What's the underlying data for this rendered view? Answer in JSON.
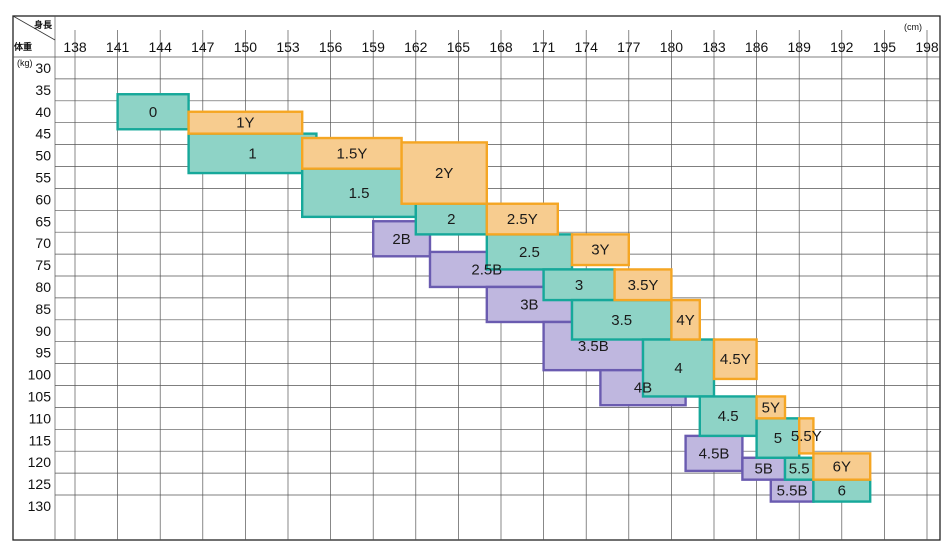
{
  "chart_data": {
    "type": "size-chart",
    "header": {
      "height_label": "身長",
      "weight_label": "体重",
      "height_unit": "(cm)",
      "weight_unit": "(kg)"
    },
    "x_ticks": [
      138,
      141,
      144,
      147,
      150,
      153,
      156,
      159,
      162,
      165,
      168,
      171,
      174,
      177,
      180,
      183,
      186,
      189,
      192,
      195,
      198
    ],
    "y_ticks": [
      30,
      35,
      40,
      45,
      50,
      55,
      60,
      65,
      70,
      75,
      80,
      85,
      90,
      95,
      100,
      105,
      110,
      115,
      120,
      125,
      130
    ],
    "series_colors": {
      "Y": "#f5a623",
      "R": "#16a89a",
      "B": "#6a5bb0"
    },
    "fill_colors": {
      "Y": "#f7cc8f",
      "R": "#8ed3c6",
      "B": "#bfb7df"
    },
    "sizes": [
      {
        "label": "0",
        "series": "R",
        "height": [
          141,
          146
        ],
        "weight": [
          36,
          44
        ]
      },
      {
        "label": "1Y",
        "series": "Y",
        "height": [
          146,
          154
        ],
        "weight": [
          40,
          45
        ]
      },
      {
        "label": "1",
        "series": "R",
        "height": [
          146,
          155
        ],
        "weight": [
          45,
          54
        ]
      },
      {
        "label": "1.5Y",
        "series": "Y",
        "height": [
          154,
          161
        ],
        "weight": [
          46,
          53
        ]
      },
      {
        "label": "2Y",
        "series": "Y",
        "height": [
          161,
          167
        ],
        "weight": [
          47,
          61
        ]
      },
      {
        "label": "1.5",
        "series": "R",
        "height": [
          154,
          162
        ],
        "weight": [
          53,
          64
        ]
      },
      {
        "label": "2",
        "series": "R",
        "height": [
          162,
          167
        ],
        "weight": [
          61,
          68
        ]
      },
      {
        "label": "2.5Y",
        "series": "Y",
        "height": [
          167,
          172
        ],
        "weight": [
          61,
          68
        ]
      },
      {
        "label": "2B",
        "series": "B",
        "height": [
          159,
          163
        ],
        "weight": [
          65,
          73
        ]
      },
      {
        "label": "2.5",
        "series": "R",
        "height": [
          167,
          173
        ],
        "weight": [
          68,
          76
        ]
      },
      {
        "label": "3Y",
        "series": "Y",
        "height": [
          173,
          177
        ],
        "weight": [
          68,
          75
        ]
      },
      {
        "label": "2.5B",
        "series": "B",
        "height": [
          163,
          171
        ],
        "weight": [
          72,
          80
        ]
      },
      {
        "label": "3",
        "series": "R",
        "height": [
          171,
          176
        ],
        "weight": [
          76,
          83
        ]
      },
      {
        "label": "3.5Y",
        "series": "Y",
        "height": [
          176,
          180
        ],
        "weight": [
          76,
          83
        ]
      },
      {
        "label": "3B",
        "series": "B",
        "height": [
          167,
          173
        ],
        "weight": [
          80,
          88
        ]
      },
      {
        "label": "3.5",
        "series": "R",
        "height": [
          173,
          180
        ],
        "weight": [
          83,
          92
        ]
      },
      {
        "label": "4Y",
        "series": "Y",
        "height": [
          180,
          182
        ],
        "weight": [
          83,
          92
        ]
      },
      {
        "label": "3.5B",
        "series": "B",
        "height": [
          171,
          178
        ],
        "weight": [
          88,
          99
        ]
      },
      {
        "label": "4",
        "series": "R",
        "height": [
          178,
          183
        ],
        "weight": [
          92,
          105
        ]
      },
      {
        "label": "4.5Y",
        "series": "Y",
        "height": [
          183,
          186
        ],
        "weight": [
          92,
          101
        ]
      },
      {
        "label": "4B",
        "series": "B",
        "height": [
          175,
          181
        ],
        "weight": [
          99,
          107
        ]
      },
      {
        "label": "4.5",
        "series": "R",
        "height": [
          182,
          186
        ],
        "weight": [
          105,
          114
        ]
      },
      {
        "label": "5Y",
        "series": "Y",
        "height": [
          186,
          188
        ],
        "weight": [
          105,
          110
        ]
      },
      {
        "label": "5",
        "series": "R",
        "height": [
          186,
          189
        ],
        "weight": [
          110,
          119
        ]
      },
      {
        "label": "5.5Y",
        "series": "Y",
        "height": [
          189,
          190
        ],
        "weight": [
          110,
          118
        ]
      },
      {
        "label": "4.5B",
        "series": "B",
        "height": [
          181,
          185
        ],
        "weight": [
          114,
          122
        ]
      },
      {
        "label": "5B",
        "series": "B",
        "height": [
          185,
          188
        ],
        "weight": [
          119,
          124
        ]
      },
      {
        "label": "5.5",
        "series": "R",
        "height": [
          188,
          190
        ],
        "weight": [
          119,
          124
        ]
      },
      {
        "label": "6Y",
        "series": "Y",
        "height": [
          190,
          194
        ],
        "weight": [
          118,
          124
        ]
      },
      {
        "label": "5.5B",
        "series": "B",
        "height": [
          187,
          190
        ],
        "weight": [
          124,
          129
        ]
      },
      {
        "label": "6",
        "series": "R",
        "height": [
          190,
          194
        ],
        "weight": [
          124,
          129
        ]
      }
    ]
  }
}
